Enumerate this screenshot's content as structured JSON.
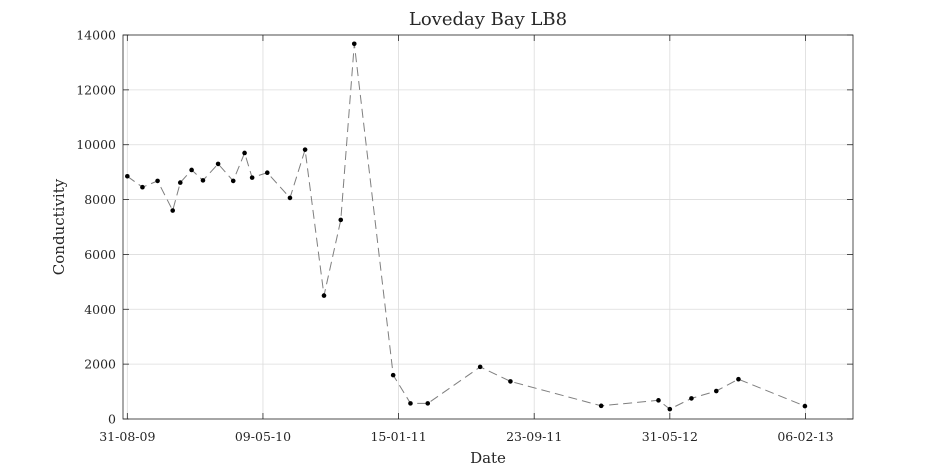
{
  "chart_data": {
    "type": "line",
    "title": "Loveday Bay LB8",
    "xlabel": "Date",
    "ylabel": "Conductivity",
    "x_tick_labels": [
      "31-08-09",
      "09-05-10",
      "15-01-11",
      "23-09-11",
      "31-05-12",
      "06-02-13"
    ],
    "x_ticks": [
      "2009-08-31",
      "2010-05-09",
      "2011-01-15",
      "2011-09-23",
      "2012-05-31",
      "2013-02-06"
    ],
    "xlim": [
      "2009-08-23",
      "2013-05-05"
    ],
    "ylim": [
      0,
      14000
    ],
    "y_ticks": [
      0,
      2000,
      4000,
      6000,
      8000,
      10000,
      12000,
      14000
    ],
    "grid": true,
    "line_style": "dashed",
    "line_color": "#7f7f7f",
    "marker_color": "#000000",
    "series": [
      {
        "x": [
          "2009-08-31",
          "2009-09-28",
          "2009-10-26",
          "2009-11-23",
          "2009-12-07",
          "2009-12-28",
          "2010-01-18",
          "2010-02-15",
          "2010-03-15",
          "2010-04-05",
          "2010-04-19",
          "2010-05-17",
          "2010-06-28",
          "2010-07-26",
          "2010-08-30",
          "2010-09-30",
          "2010-10-25",
          "2011-01-05",
          "2011-02-06",
          "2011-03-10",
          "2011-06-15",
          "2011-08-10",
          "2012-01-25",
          "2012-05-10",
          "2012-05-31",
          "2012-07-10",
          "2012-08-25",
          "2012-10-05",
          "2013-02-05"
        ],
        "values": [
          8850,
          8450,
          8680,
          7600,
          8620,
          9080,
          8700,
          9300,
          8680,
          9700,
          8800,
          8980,
          8060,
          9820,
          4500,
          7260,
          13680,
          1600,
          570,
          570,
          1900,
          1370,
          480,
          680,
          360,
          750,
          1020,
          1450,
          470
        ]
      }
    ]
  }
}
